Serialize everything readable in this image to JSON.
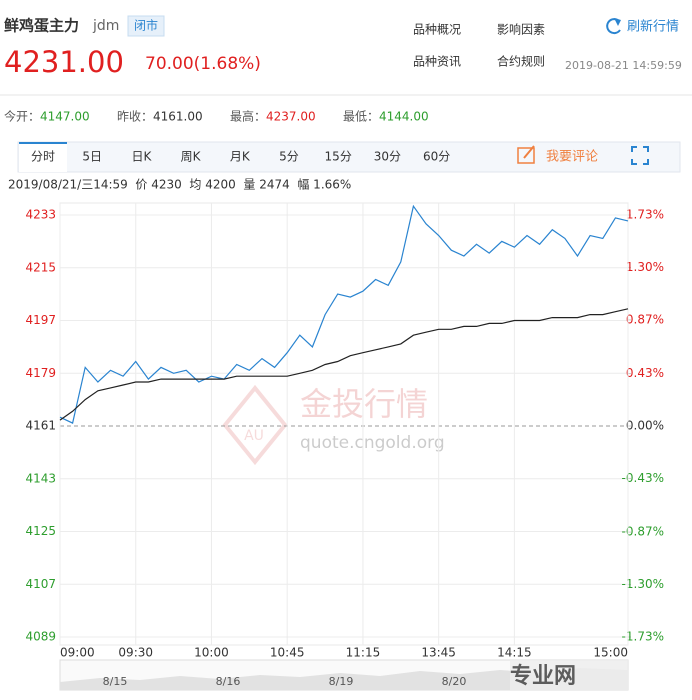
{
  "header": {
    "name": "鲜鸡蛋主力",
    "code": "jdm",
    "status": "闭市",
    "links": [
      "品种概况",
      "影响因素",
      "品种资讯",
      "合约规则"
    ],
    "refresh": "刷新行情",
    "price": "4231.00",
    "change": "70.00(1.68%)",
    "time": "2019-08-21 14:59:59",
    "stats": [
      {
        "label": "今开：",
        "value": "4147.00"
      },
      {
        "label": "昨收：",
        "value": "4161.00"
      },
      {
        "label": "最高：",
        "value": "4237.00"
      },
      {
        "label": "最低：",
        "value": "4144.00"
      }
    ],
    "tabs": [
      "分时",
      "5日",
      "日K",
      "周K",
      "月K",
      "5分",
      "15分",
      "30分",
      "60分"
    ],
    "comment": "我要评论",
    "info": "2019/08/21/三14:59  价 4230  均 4200  量 2474  幅 1.66%"
  },
  "chart_data": {
    "type": "line",
    "x": [
      0,
      5,
      10,
      15,
      20,
      25,
      30,
      35,
      40,
      45,
      50,
      55,
      60,
      65,
      70,
      75,
      80,
      85,
      90,
      95,
      100,
      105,
      110,
      115,
      120,
      125,
      130,
      135,
      140,
      145,
      150,
      155,
      160,
      165,
      170,
      175,
      180,
      185,
      190,
      195,
      200,
      205,
      210,
      215,
      220,
      225
    ],
    "series": [
      {
        "color": "#2a84d0",
        "values": [
          4164,
          4162,
          4181,
          4176,
          4180,
          4178,
          4183,
          4177,
          4181,
          4179,
          4180,
          4176,
          4178,
          4177,
          4182,
          4180,
          4184,
          4181,
          4186,
          4192,
          4188,
          4199,
          4206,
          4205,
          4207,
          4211,
          4209,
          4217,
          4236,
          4230,
          4226,
          4221,
          4219,
          4223,
          4220,
          4224,
          4222,
          4226,
          4223,
          4228,
          4225,
          4219,
          4226,
          4225,
          4232,
          4231
        ]
      },
      {
        "color": "#222222",
        "values": [
          4163,
          4166,
          4170,
          4173,
          4174,
          4175,
          4176,
          4176,
          4177,
          4177,
          4177,
          4177,
          4177,
          4177,
          4178,
          4178,
          4178,
          4178,
          4178,
          4179,
          4180,
          4182,
          4183,
          4185,
          4186,
          4187,
          4188,
          4189,
          4192,
          4193,
          4194,
          4194,
          4195,
          4195,
          4196,
          4196,
          4197,
          4197,
          4197,
          4198,
          4198,
          4198,
          4199,
          4199,
          4200,
          4201
        ]
      }
    ],
    "xlim": [
      0,
      225
    ],
    "xticks": [
      {
        "value": 0,
        "label": "09:00"
      },
      {
        "value": 30,
        "label": "09:30"
      },
      {
        "value": 60,
        "label": "10:00"
      },
      {
        "value": 90,
        "label": "10:45"
      },
      {
        "value": 120,
        "label": "11:15"
      },
      {
        "value": 150,
        "label": "13:45"
      },
      {
        "value": 180,
        "label": "14:15"
      },
      {
        "value": 225,
        "label": "15:00"
      }
    ],
    "ylim": [
      4089,
      4233
    ],
    "yticks": [
      4233,
      4215,
      4197,
      4179,
      4161,
      4143,
      4125,
      4107,
      4089
    ],
    "y2lim": [
      -1.73,
      1.73
    ],
    "y2ticks": [
      {
        "value": 1.73,
        "label": "1.73%"
      },
      {
        "value": 1.3,
        "label": "1.30%"
      },
      {
        "value": 0.87,
        "label": "0.87%"
      },
      {
        "value": 0.43,
        "label": "0.43%"
      },
      {
        "value": 0,
        "label": "0.00%"
      },
      {
        "value": -0.43,
        "label": "-0.43%"
      },
      {
        "value": -0.87,
        "label": "-0.87%"
      },
      {
        "value": -1.3,
        "label": "-1.30%"
      },
      {
        "value": -1.73,
        "label": "-1.73%"
      }
    ],
    "grid": true,
    "navigator": [
      "8/15",
      "8/16",
      "8/19",
      "8/20"
    ],
    "watermark": [
      "金投行情",
      "quote.cngold.org",
      "专业网"
    ]
  }
}
